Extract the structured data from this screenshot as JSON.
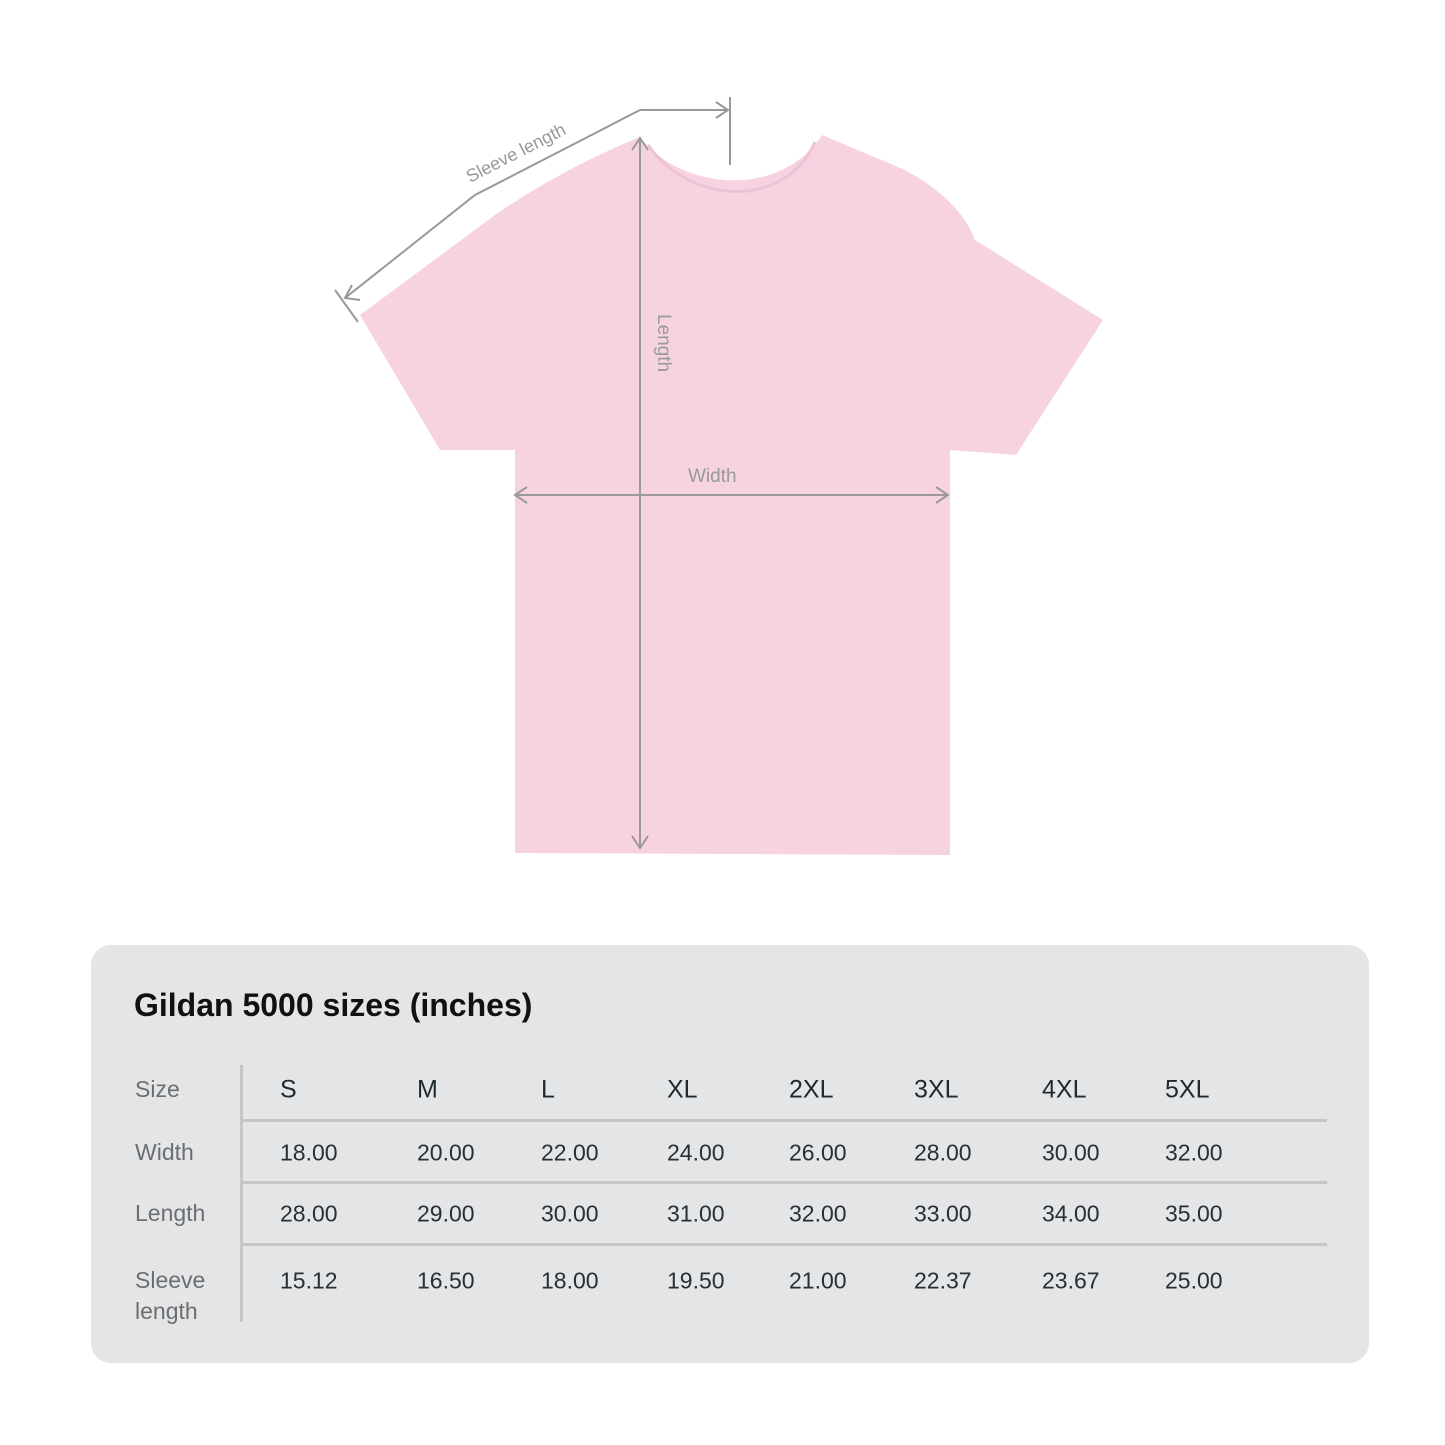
{
  "diagram": {
    "labels": {
      "sleeve": "Sleeve length",
      "length": "Length",
      "width": "Width"
    },
    "shirt_color": "#f7d3e2",
    "measure_color": "#999999"
  },
  "table": {
    "title": "Gildan 5000 sizes (inches)",
    "row_labels": [
      "Size",
      "Width",
      "Length",
      "Sleeve length"
    ],
    "sizes": [
      "S",
      "M",
      "L",
      "XL",
      "2XL",
      "3XL",
      "4XL",
      "5XL"
    ],
    "rows": [
      [
        "18.00",
        "20.00",
        "22.00",
        "24.00",
        "26.00",
        "28.00",
        "30.00",
        "32.00"
      ],
      [
        "28.00",
        "29.00",
        "30.00",
        "31.00",
        "32.00",
        "33.00",
        "34.00",
        "35.00"
      ],
      [
        "15.12",
        "16.50",
        "18.00",
        "19.50",
        "21.00",
        "22.37",
        "23.67",
        "25.00"
      ]
    ],
    "background": "#e4e5e7"
  }
}
